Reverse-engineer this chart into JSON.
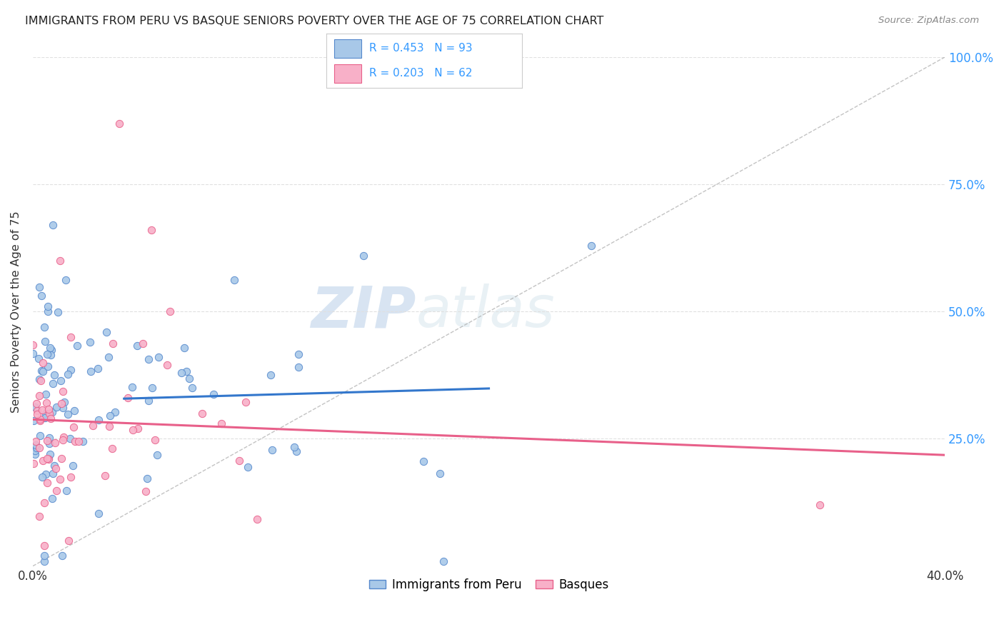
{
  "title": "IMMIGRANTS FROM PERU VS BASQUE SENIORS POVERTY OVER THE AGE OF 75 CORRELATION CHART",
  "source": "Source: ZipAtlas.com",
  "ylabel": "Seniors Poverty Over the Age of 75",
  "series1_label": "Immigrants from Peru",
  "series2_label": "Basques",
  "series1_R": 0.453,
  "series1_N": 93,
  "series2_R": 0.203,
  "series2_N": 62,
  "series1_color": "#a8c8e8",
  "series2_color": "#f8b0c8",
  "series1_edge_color": "#5588cc",
  "series2_edge_color": "#e8608a",
  "trend1_color": "#3377cc",
  "trend2_color": "#e8608a",
  "legend_border_color": "#cccccc",
  "grid_color": "#e0e0e0",
  "title_color": "#222222",
  "watermark_color": "#ccdded",
  "right_axis_color": "#3399ff",
  "background_color": "#ffffff",
  "scatter_size": 55,
  "xlim": [
    0.0,
    0.4
  ],
  "ylim": [
    0.0,
    1.0
  ]
}
